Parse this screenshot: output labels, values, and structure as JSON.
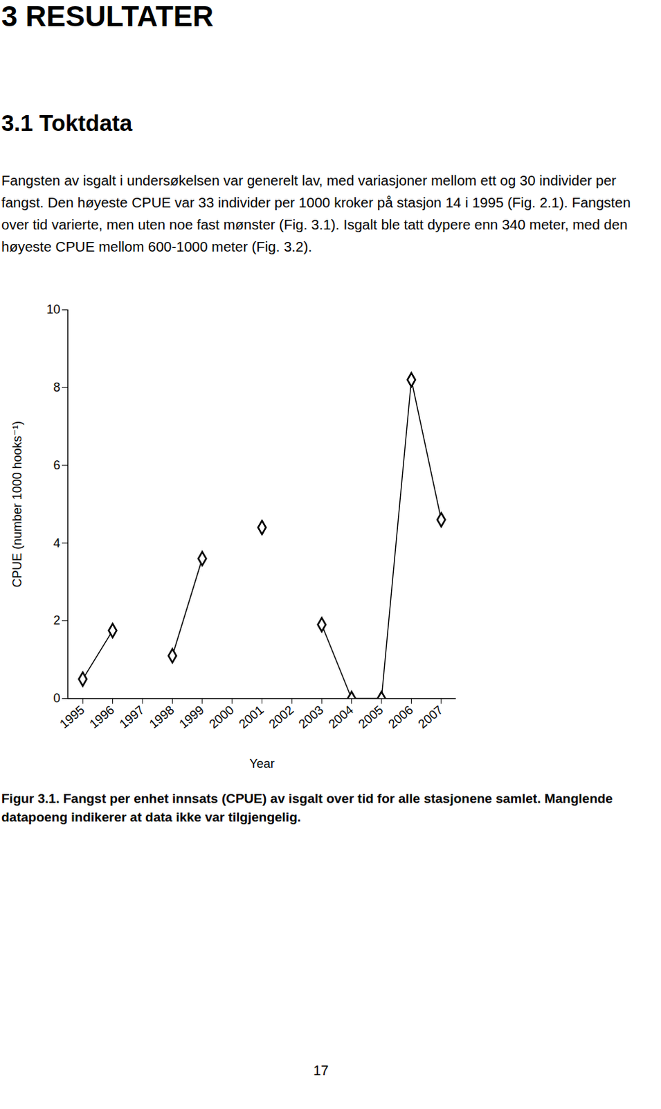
{
  "heading": "3 RESULTATER",
  "subheading": "3.1 Toktdata",
  "paragraph": "Fangsten av isgalt i undersøkelsen var generelt lav, med variasjoner mellom ett og 30 individer per fangst. Den høyeste CPUE var 33 individer per 1000 kroker på stasjon 14 i 1995 (Fig. 2.1). Fangsten over tid varierte, men uten noe fast mønster (Fig. 3.1). Isgalt ble tatt dypere enn 340 meter, med den høyeste CPUE mellom 600-1000 meter (Fig. 3.2).",
  "chart_data": {
    "type": "line",
    "x_label": "Year",
    "y_label": "CPUE (number 1000 hooks⁻¹)",
    "x": [
      1995,
      1996,
      1997,
      1998,
      1999,
      2000,
      2001,
      2002,
      2003,
      2004,
      2005,
      2006,
      2007
    ],
    "values": [
      0.5,
      1.75,
      null,
      1.1,
      3.6,
      null,
      4.4,
      null,
      1.9,
      0,
      0,
      8.2,
      4.6
    ],
    "color": "#000000",
    "marker": "diamond",
    "xlim": [
      1994.5,
      2007.5
    ],
    "xticks": [
      1995,
      1996,
      1997,
      1998,
      1999,
      2000,
      2001,
      2002,
      2003,
      2004,
      2005,
      2006,
      2007
    ],
    "ylim": [
      0,
      10
    ],
    "yticks": [
      0,
      2,
      4,
      6,
      8,
      10
    ],
    "grid": false
  },
  "caption": "Figur 3.1. Fangst per enhet innsats (CPUE) av isgalt over tid for alle stasjonene samlet. Manglende datapoeng indikerer at data ikke var tilgjengelig.",
  "page_number": "17"
}
